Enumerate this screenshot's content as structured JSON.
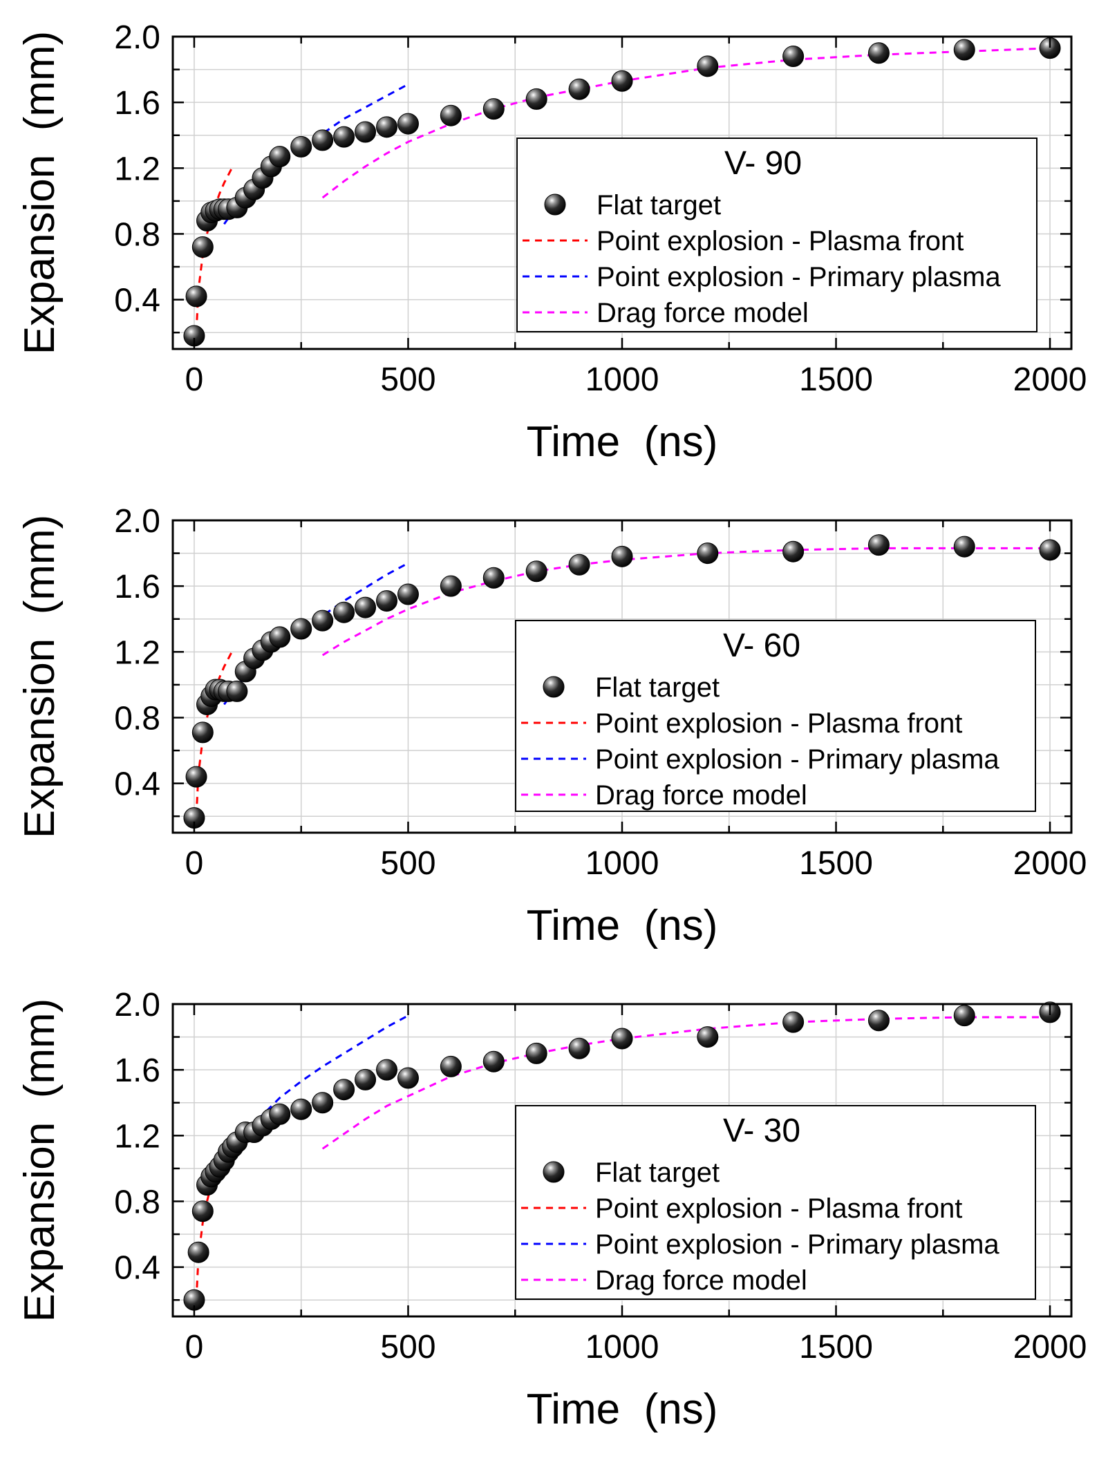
{
  "chart_data": [
    {
      "type": "scatter",
      "title": "V- 90",
      "xlabel": "Time  (ns)",
      "ylabel": "Expansion  (mm)",
      "xlim": [
        -50,
        2050
      ],
      "ylim": [
        0.1,
        2.0
      ],
      "xticks": [
        "0",
        "500",
        "1000",
        "1500",
        "2000"
      ],
      "yticks": [
        "0.4",
        "0.8",
        "1.2",
        "1.6",
        "2.0"
      ],
      "grid": true,
      "legend_position": "center-right",
      "series": [
        {
          "name": "Flat target",
          "kind": "points",
          "color": "#1a1a1a",
          "x": [
            0,
            5,
            20,
            30,
            40,
            50,
            60,
            70,
            80,
            100,
            120,
            140,
            160,
            180,
            200,
            250,
            300,
            350,
            400,
            450,
            500,
            600,
            700,
            800,
            900,
            1000,
            1200,
            1400,
            1600,
            1800,
            2000
          ],
          "y": [
            0.18,
            0.42,
            0.72,
            0.88,
            0.93,
            0.94,
            0.95,
            0.95,
            0.95,
            0.96,
            1.02,
            1.07,
            1.14,
            1.21,
            1.27,
            1.33,
            1.37,
            1.39,
            1.42,
            1.45,
            1.47,
            1.52,
            1.56,
            1.62,
            1.68,
            1.73,
            1.82,
            1.88,
            1.9,
            1.92,
            1.93
          ]
        },
        {
          "name": "Point explosion - Plasma front",
          "kind": "line",
          "color": "#ff0000",
          "x": [
            5,
            10,
            20,
            30,
            40,
            50,
            60,
            70,
            80,
            90
          ],
          "y": [
            0.2,
            0.46,
            0.67,
            0.8,
            0.9,
            0.98,
            1.05,
            1.11,
            1.16,
            1.21
          ]
        },
        {
          "name": "Point explosion - Primary plasma",
          "kind": "line",
          "color": "#0000ff",
          "x": [
            70,
            100,
            150,
            200,
            250,
            300,
            350,
            400,
            450,
            500
          ],
          "y": [
            0.86,
            0.97,
            1.12,
            1.25,
            1.34,
            1.41,
            1.5,
            1.57,
            1.64,
            1.71
          ]
        },
        {
          "name": "Drag force model",
          "kind": "line",
          "color": "#ff00ff",
          "x": [
            300,
            350,
            400,
            450,
            500,
            600,
            700,
            800,
            900,
            1000,
            1200,
            1400,
            1600,
            1800,
            2000
          ],
          "y": [
            1.02,
            1.12,
            1.21,
            1.29,
            1.36,
            1.47,
            1.56,
            1.63,
            1.68,
            1.73,
            1.81,
            1.86,
            1.89,
            1.91,
            1.93
          ]
        }
      ]
    },
    {
      "type": "scatter",
      "title": "V- 60",
      "xlabel": "Time  (ns)",
      "ylabel": "Expansion  (mm)",
      "xlim": [
        -50,
        2050
      ],
      "ylim": [
        0.1,
        2.0
      ],
      "xticks": [
        "0",
        "500",
        "1000",
        "1500",
        "2000"
      ],
      "yticks": [
        "0.4",
        "0.8",
        "1.2",
        "1.6",
        "2.0"
      ],
      "grid": true,
      "legend_position": "center-right",
      "series": [
        {
          "name": "Flat target",
          "kind": "points",
          "color": "#1a1a1a",
          "x": [
            0,
            5,
            20,
            30,
            40,
            50,
            60,
            70,
            80,
            100,
            120,
            140,
            160,
            180,
            200,
            250,
            300,
            350,
            400,
            450,
            500,
            600,
            700,
            800,
            900,
            1000,
            1200,
            1400,
            1600,
            1800,
            2000
          ],
          "y": [
            0.19,
            0.44,
            0.71,
            0.88,
            0.93,
            0.97,
            0.97,
            0.96,
            0.96,
            0.96,
            1.08,
            1.16,
            1.21,
            1.26,
            1.29,
            1.34,
            1.39,
            1.44,
            1.47,
            1.51,
            1.55,
            1.6,
            1.65,
            1.69,
            1.73,
            1.78,
            1.8,
            1.81,
            1.85,
            1.84,
            1.82
          ]
        },
        {
          "name": "Point explosion - Plasma front",
          "kind": "line",
          "color": "#ff0000",
          "x": [
            5,
            10,
            20,
            30,
            40,
            50,
            60,
            70,
            80,
            90
          ],
          "y": [
            0.2,
            0.46,
            0.67,
            0.8,
            0.9,
            0.98,
            1.05,
            1.11,
            1.16,
            1.21
          ]
        },
        {
          "name": "Point explosion - Primary plasma",
          "kind": "line",
          "color": "#0000ff",
          "x": [
            70,
            100,
            150,
            200,
            250,
            300,
            350,
            400,
            450,
            500
          ],
          "y": [
            0.88,
            0.99,
            1.14,
            1.26,
            1.35,
            1.42,
            1.51,
            1.59,
            1.67,
            1.74
          ]
        },
        {
          "name": "Drag force model",
          "kind": "line",
          "color": "#ff00ff",
          "x": [
            300,
            350,
            400,
            450,
            500,
            600,
            700,
            800,
            900,
            1000,
            1200,
            1400,
            1600,
            1800,
            2000
          ],
          "y": [
            1.18,
            1.26,
            1.33,
            1.4,
            1.46,
            1.56,
            1.63,
            1.69,
            1.73,
            1.76,
            1.8,
            1.82,
            1.83,
            1.83,
            1.83
          ]
        }
      ]
    },
    {
      "type": "scatter",
      "title": "V- 30",
      "xlabel": "Time  (ns)",
      "ylabel": "Expansion  (mm)",
      "xlim": [
        -50,
        2050
      ],
      "ylim": [
        0.1,
        2.0
      ],
      "xticks": [
        "0",
        "500",
        "1000",
        "1500",
        "2000"
      ],
      "yticks": [
        "0.4",
        "0.8",
        "1.2",
        "1.6",
        "2.0"
      ],
      "grid": true,
      "legend_position": "center-right",
      "series": [
        {
          "name": "Flat target",
          "kind": "points",
          "color": "#1a1a1a",
          "x": [
            0,
            10,
            20,
            30,
            40,
            50,
            60,
            70,
            80,
            90,
            100,
            120,
            140,
            160,
            180,
            200,
            250,
            300,
            350,
            400,
            450,
            500,
            600,
            700,
            800,
            900,
            1000,
            1200,
            1400,
            1600,
            1800,
            2000
          ],
          "y": [
            0.2,
            0.49,
            0.74,
            0.9,
            0.95,
            0.98,
            1.01,
            1.05,
            1.1,
            1.13,
            1.16,
            1.22,
            1.22,
            1.26,
            1.3,
            1.33,
            1.36,
            1.4,
            1.48,
            1.54,
            1.6,
            1.55,
            1.62,
            1.65,
            1.7,
            1.73,
            1.79,
            1.8,
            1.89,
            1.9,
            1.93,
            1.95
          ]
        },
        {
          "name": "Point explosion - Plasma front",
          "kind": "line",
          "color": "#ff0000",
          "x": [
            5,
            10,
            20,
            30,
            40,
            50,
            60,
            70,
            80,
            90,
            100
          ],
          "y": [
            0.2,
            0.46,
            0.67,
            0.8,
            0.9,
            0.98,
            1.05,
            1.1,
            1.15,
            1.19,
            1.22
          ]
        },
        {
          "name": "Point explosion - Primary plasma",
          "kind": "line",
          "color": "#0000ff",
          "x": [
            70,
            100,
            150,
            200,
            250,
            300,
            350,
            400,
            450,
            500
          ],
          "y": [
            0.98,
            1.13,
            1.3,
            1.43,
            1.53,
            1.62,
            1.7,
            1.78,
            1.86,
            1.93
          ]
        },
        {
          "name": "Drag force model",
          "kind": "line",
          "color": "#ff00ff",
          "x": [
            300,
            350,
            400,
            450,
            500,
            600,
            700,
            800,
            900,
            1000,
            1200,
            1400,
            1600,
            1800,
            2000
          ],
          "y": [
            1.12,
            1.21,
            1.3,
            1.38,
            1.44,
            1.56,
            1.64,
            1.7,
            1.75,
            1.79,
            1.85,
            1.89,
            1.91,
            1.92,
            1.92
          ]
        }
      ]
    }
  ]
}
